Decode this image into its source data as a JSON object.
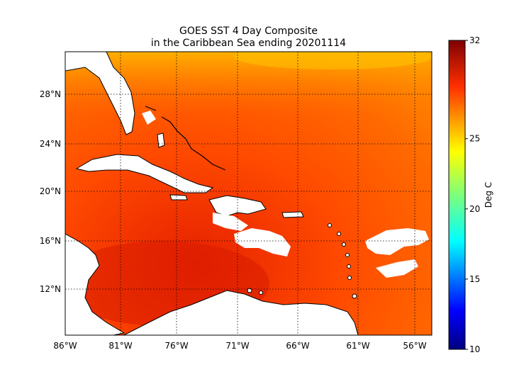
{
  "title": {
    "line1": "GOES SST 4 Day Composite",
    "line2": "in the Caribbean Sea ending 20201114"
  },
  "map": {
    "lon_ticks": [
      "86°W",
      "81°W",
      "76°W",
      "71°W",
      "66°W",
      "61°W",
      "56°W"
    ],
    "lat_ticks": [
      "28°N",
      "24°N",
      "20°N",
      "16°N",
      "12°N"
    ]
  },
  "colorbar": {
    "label": "Deg C",
    "ticks": [
      "32",
      "25",
      "20",
      "15",
      "10"
    ],
    "range": [
      10,
      32
    ],
    "colormap": "jet"
  },
  "colors": {
    "sea_warm": "#ff5a00",
    "sea_hot": "#e32300",
    "sea_cool": "#ffa000",
    "land": "#ffffff",
    "coast": "#000000"
  }
}
